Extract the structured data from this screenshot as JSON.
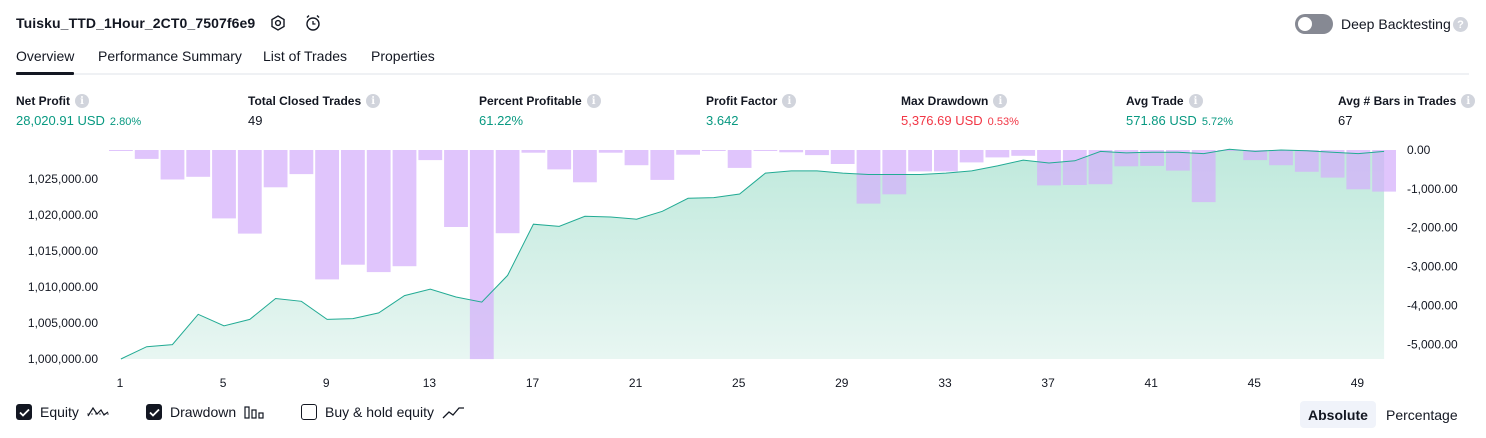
{
  "header": {
    "strategy_name": "Tuisku_TTD_1Hour_2CT0_7507f6e9",
    "deep_backtesting_label": "Deep Backtesting",
    "deep_backtesting_enabled": false,
    "help_glyph": "?"
  },
  "tabs": [
    {
      "label": "Overview",
      "active": true
    },
    {
      "label": "Performance Summary",
      "active": false
    },
    {
      "label": "List of Trades",
      "active": false
    },
    {
      "label": "Properties",
      "active": false
    }
  ],
  "stats": [
    {
      "label": "Net Profit",
      "value": "28,020.91 USD",
      "pct": "2.80%",
      "color": "green"
    },
    {
      "label": "Total Closed Trades",
      "value": "49",
      "pct": "",
      "color": "neutral"
    },
    {
      "label": "Percent Profitable",
      "value": "61.22%",
      "pct": "",
      "color": "green"
    },
    {
      "label": "Profit Factor",
      "value": "3.642",
      "pct": "",
      "color": "green"
    },
    {
      "label": "Max Drawdown",
      "value": "5,376.69 USD",
      "pct": "0.53%",
      "color": "red"
    },
    {
      "label": "Avg Trade",
      "value": "571.86 USD",
      "pct": "5.72%",
      "color": "green"
    },
    {
      "label": "Avg # Bars in Trades",
      "value": "67",
      "pct": "",
      "color": "neutral"
    }
  ],
  "info_glyph": "i",
  "chart_data": {
    "type": "area",
    "x": [
      1,
      2,
      3,
      4,
      5,
      6,
      7,
      8,
      9,
      10,
      11,
      12,
      13,
      14,
      15,
      16,
      17,
      18,
      19,
      20,
      21,
      22,
      23,
      24,
      25,
      26,
      27,
      28,
      29,
      30,
      31,
      32,
      33,
      34,
      35,
      36,
      37,
      38,
      39,
      40,
      41,
      42,
      43,
      44,
      45,
      46,
      47,
      48,
      49,
      50
    ],
    "series": [
      {
        "values": [
          1000000,
          1001700,
          1002000,
          1006200,
          1004600,
          1005500,
          1008400,
          1008000,
          1005500,
          1005600,
          1006400,
          1008800,
          1009700,
          1008600,
          1007900,
          1011600,
          1018700,
          1018400,
          1019800,
          1019700,
          1019400,
          1020500,
          1022300,
          1022400,
          1022900,
          1025800,
          1026100,
          1026100,
          1025800,
          1025600,
          1025600,
          1025600,
          1025800,
          1026100,
          1026800,
          1027600,
          1027200,
          1027500,
          1028800,
          1028600,
          1028700,
          1028700,
          1028500,
          1029100,
          1028800,
          1029000,
          1028900,
          1028700,
          1028500,
          1028800
        ]
      },
      {
        "values": [
          0,
          -230,
          -760,
          -690,
          -1760,
          -2150,
          -960,
          -620,
          -3330,
          -2950,
          -3140,
          -2990,
          -260,
          -1980,
          -5380,
          -2140,
          -70,
          -500,
          -830,
          -70,
          -390,
          -770,
          -120,
          0,
          -460,
          0,
          -60,
          -130,
          -360,
          -1380,
          -1140,
          -550,
          -550,
          -320,
          -190,
          -150,
          -910,
          -900,
          -880,
          -420,
          -410,
          -530,
          -1340,
          0,
          -260,
          -390,
          -560,
          -710,
          -1010,
          -1070
        ]
      }
    ],
    "ylim_left": [
      1000000,
      1029000
    ],
    "y_ticks_left": [
      "1,025,000.00",
      "1,020,000.00",
      "1,015,000.00",
      "1,010,000.00",
      "1,005,000.00",
      "1,000,000.00"
    ],
    "y_ticks_right": [
      "0.00",
      "-1,000.00",
      "-2,000.00",
      "-3,000.00",
      "-4,000.00",
      "-5,000.00"
    ],
    "x_ticks": [
      "1",
      "5",
      "9",
      "13",
      "17",
      "21",
      "25",
      "29",
      "33",
      "37",
      "41",
      "45",
      "49"
    ],
    "colors": {
      "equity_line": "#22ab94",
      "equity_fill_top": "#bfe9dc",
      "equity_fill_bottom": "#e8f6f2",
      "drawdown": "#d4aefb"
    }
  },
  "legend": {
    "equity": {
      "label": "Equity",
      "checked": true
    },
    "drawdown": {
      "label": "Drawdown",
      "checked": true
    },
    "buy_hold": {
      "label": "Buy & hold equity",
      "checked": false
    }
  },
  "mode": {
    "absolute_label": "Absolute",
    "percentage_label": "Percentage",
    "selected": "Absolute"
  }
}
